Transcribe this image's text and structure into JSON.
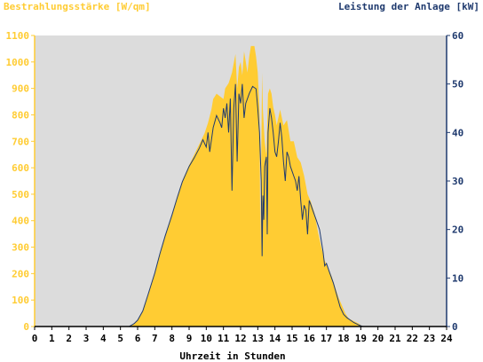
{
  "chart_data": {
    "type": "area",
    "left_axis_title": "Bestrahlungsstärke [W/qm]",
    "right_axis_title": "Leistung der Anlage [kW]",
    "xlabel": "Uhrzeit in Stunden",
    "xlim": [
      0,
      24
    ],
    "ylim_left": [
      0,
      1100
    ],
    "ylim_right": [
      0,
      60
    ],
    "x_ticks": [
      "0",
      "1",
      "2",
      "3",
      "4",
      "5",
      "6",
      "7",
      "8",
      "9",
      "10",
      "11",
      "12",
      "13",
      "14",
      "15",
      "16",
      "17",
      "18",
      "19",
      "20",
      "21",
      "22",
      "23",
      "24"
    ],
    "y_left_ticks": [
      "0",
      "100",
      "200",
      "300",
      "400",
      "500",
      "600",
      "700",
      "800",
      "900",
      "1000",
      "1100"
    ],
    "y_right_ticks": [
      "0",
      "10",
      "20",
      "30",
      "40",
      "50",
      "60"
    ],
    "colors": {
      "irradiance_fill": "#FFCC33",
      "power_line": "#1F3A6E",
      "plot_background": "#DCDCDC",
      "left_axis": "#FFCC33",
      "right_axis": "#1F3A6E"
    },
    "series": [
      {
        "axis": "left",
        "style": "area",
        "points": [
          [
            0,
            0
          ],
          [
            5.5,
            0
          ],
          [
            5.8,
            10
          ],
          [
            6.0,
            25
          ],
          [
            6.3,
            60
          ],
          [
            6.6,
            120
          ],
          [
            7.0,
            200
          ],
          [
            7.3,
            270
          ],
          [
            7.6,
            340
          ],
          [
            8.0,
            420
          ],
          [
            8.3,
            490
          ],
          [
            8.6,
            550
          ],
          [
            9.0,
            610
          ],
          [
            9.3,
            650
          ],
          [
            9.6,
            690
          ],
          [
            9.9,
            730
          ],
          [
            10.1,
            770
          ],
          [
            10.3,
            820
          ],
          [
            10.4,
            860
          ],
          [
            10.6,
            880
          ],
          [
            10.8,
            870
          ],
          [
            11.0,
            860
          ],
          [
            11.1,
            900
          ],
          [
            11.3,
            920
          ],
          [
            11.5,
            960
          ],
          [
            11.7,
            1030
          ],
          [
            11.8,
            900
          ],
          [
            11.9,
            980
          ],
          [
            12.0,
            1000
          ],
          [
            12.1,
            950
          ],
          [
            12.2,
            1040
          ],
          [
            12.3,
            1000
          ],
          [
            12.4,
            960
          ],
          [
            12.5,
            1020
          ],
          [
            12.6,
            1060
          ],
          [
            12.8,
            1060
          ],
          [
            12.9,
            1020
          ],
          [
            13.0,
            960
          ],
          [
            13.1,
            820
          ],
          [
            13.15,
            300
          ],
          [
            13.25,
            960
          ],
          [
            13.3,
            820
          ],
          [
            13.4,
            700
          ],
          [
            13.5,
            650
          ],
          [
            13.6,
            880
          ],
          [
            13.7,
            900
          ],
          [
            13.8,
            880
          ],
          [
            13.9,
            830
          ],
          [
            14.0,
            800
          ],
          [
            14.1,
            760
          ],
          [
            14.3,
            820
          ],
          [
            14.5,
            760
          ],
          [
            14.7,
            780
          ],
          [
            14.9,
            700
          ],
          [
            15.1,
            700
          ],
          [
            15.3,
            640
          ],
          [
            15.5,
            620
          ],
          [
            15.7,
            570
          ],
          [
            15.9,
            500
          ],
          [
            16.1,
            470
          ],
          [
            16.3,
            430
          ],
          [
            16.5,
            360
          ],
          [
            16.7,
            300
          ],
          [
            16.9,
            250
          ],
          [
            17.1,
            220
          ],
          [
            17.3,
            190
          ],
          [
            17.5,
            150
          ],
          [
            17.7,
            110
          ],
          [
            17.9,
            80
          ],
          [
            18.1,
            50
          ],
          [
            18.3,
            30
          ],
          [
            18.6,
            20
          ],
          [
            18.9,
            10
          ],
          [
            19.1,
            0
          ],
          [
            24,
            0
          ]
        ]
      },
      {
        "axis": "right",
        "style": "line",
        "points": [
          [
            0,
            0
          ],
          [
            5.5,
            0
          ],
          [
            5.8,
            0.6
          ],
          [
            6.0,
            1.3
          ],
          [
            6.3,
            3.2
          ],
          [
            6.6,
            6.5
          ],
          [
            7.0,
            11
          ],
          [
            7.3,
            15
          ],
          [
            7.6,
            18.6
          ],
          [
            8.0,
            23
          ],
          [
            8.3,
            26.5
          ],
          [
            8.6,
            29.8
          ],
          [
            9.0,
            33
          ],
          [
            9.3,
            34.8
          ],
          [
            9.6,
            36.8
          ],
          [
            9.8,
            38.5
          ],
          [
            10.0,
            37
          ],
          [
            10.1,
            40
          ],
          [
            10.2,
            36
          ],
          [
            10.4,
            41
          ],
          [
            10.6,
            43.5
          ],
          [
            10.8,
            42
          ],
          [
            10.9,
            41
          ],
          [
            11.0,
            45
          ],
          [
            11.1,
            43
          ],
          [
            11.2,
            46
          ],
          [
            11.3,
            40
          ],
          [
            11.4,
            47
          ],
          [
            11.5,
            28
          ],
          [
            11.6,
            45
          ],
          [
            11.7,
            50
          ],
          [
            11.8,
            34
          ],
          [
            11.9,
            48
          ],
          [
            12.0,
            46
          ],
          [
            12.1,
            50
          ],
          [
            12.2,
            43
          ],
          [
            12.3,
            46
          ],
          [
            12.5,
            48
          ],
          [
            12.7,
            49.5
          ],
          [
            12.9,
            49
          ],
          [
            13.0,
            45
          ],
          [
            13.1,
            40
          ],
          [
            13.2,
            30
          ],
          [
            13.25,
            14.5
          ],
          [
            13.3,
            27
          ],
          [
            13.35,
            22
          ],
          [
            13.4,
            33
          ],
          [
            13.5,
            35
          ],
          [
            13.55,
            19
          ],
          [
            13.6,
            40
          ],
          [
            13.7,
            45
          ],
          [
            13.8,
            43
          ],
          [
            13.9,
            40
          ],
          [
            14.0,
            36
          ],
          [
            14.1,
            35
          ],
          [
            14.2,
            38
          ],
          [
            14.3,
            42
          ],
          [
            14.4,
            39
          ],
          [
            14.5,
            34
          ],
          [
            14.6,
            30
          ],
          [
            14.7,
            36
          ],
          [
            14.8,
            35
          ],
          [
            14.9,
            33
          ],
          [
            15.0,
            32
          ],
          [
            15.1,
            31
          ],
          [
            15.2,
            30
          ],
          [
            15.3,
            28
          ],
          [
            15.4,
            31
          ],
          [
            15.5,
            26
          ],
          [
            15.6,
            22
          ],
          [
            15.7,
            25
          ],
          [
            15.8,
            24
          ],
          [
            15.9,
            19
          ],
          [
            16.0,
            26
          ],
          [
            16.1,
            25
          ],
          [
            16.2,
            24
          ],
          [
            16.4,
            22
          ],
          [
            16.6,
            20
          ],
          [
            16.8,
            15.5
          ],
          [
            16.9,
            12.5
          ],
          [
            17.0,
            13
          ],
          [
            17.2,
            11
          ],
          [
            17.4,
            9
          ],
          [
            17.6,
            6.5
          ],
          [
            17.8,
            4
          ],
          [
            18.0,
            2.5
          ],
          [
            18.2,
            1.8
          ],
          [
            18.4,
            1.3
          ],
          [
            18.6,
            0.8
          ],
          [
            18.9,
            0.3
          ],
          [
            19.1,
            0
          ],
          [
            24,
            0
          ]
        ]
      }
    ]
  }
}
